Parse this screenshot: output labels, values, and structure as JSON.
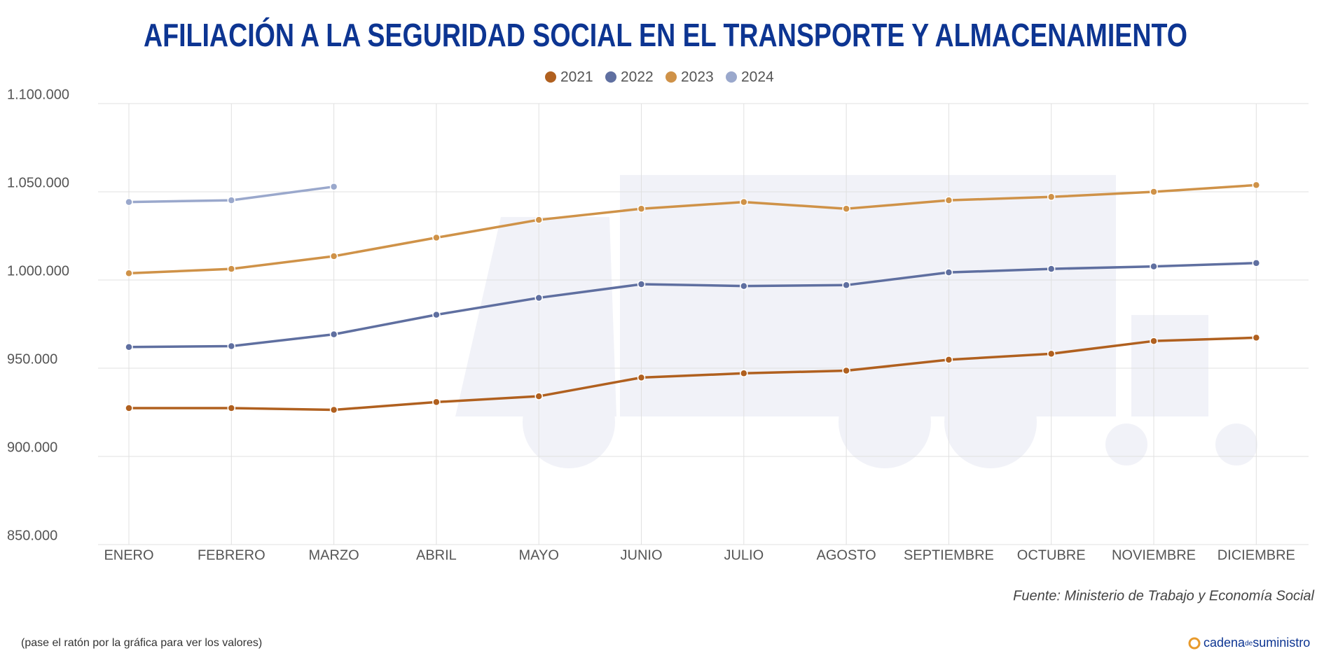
{
  "chart_data": {
    "type": "line",
    "title": "AFILIACIÓN A LA SEGURIDAD SOCIAL EN EL TRANSPORTE Y ALMACENAMIENTO",
    "categories": [
      "ENERO",
      "FEBRERO",
      "MARZO",
      "ABRIL",
      "MAYO",
      "JUNIO",
      "JULIO",
      "AGOSTO",
      "SEPTIEMBRE",
      "OCTUBRE",
      "NOVIEMBRE",
      "DICIEMBRE"
    ],
    "series": [
      {
        "name": "2021",
        "color": "#b0601f",
        "values": [
          927400,
          927400,
          926400,
          930800,
          934100,
          944700,
          947100,
          948600,
          954800,
          958200,
          965400,
          967300
        ]
      },
      {
        "name": "2022",
        "color": "#5f6fa0",
        "values": [
          962000,
          962500,
          969200,
          980300,
          989900,
          997600,
          996600,
          997100,
          1004300,
          1006300,
          1007700,
          1009600
        ]
      },
      {
        "name": "2023",
        "color": "#cf9248",
        "values": [
          1003800,
          1006300,
          1013500,
          1024000,
          1034100,
          1040400,
          1044200,
          1040400,
          1045200,
          1047100,
          1050000,
          1053800
        ]
      },
      {
        "name": "2024",
        "color": "#9aa8cc",
        "values": [
          1044200,
          1045200,
          1052900,
          null,
          null,
          null,
          null,
          null,
          null,
          null,
          null,
          null
        ]
      }
    ],
    "ylim": [
      850000,
      1100000
    ],
    "yticks": [
      {
        "value": 850000,
        "label": "850.000"
      },
      {
        "value": 900000,
        "label": "900.000"
      },
      {
        "value": 950000,
        "label": "950.000"
      },
      {
        "value": 1000000,
        "label": "1.000.000"
      },
      {
        "value": 1050000,
        "label": "1.050.000"
      },
      {
        "value": 1100000,
        "label": "1.100.000"
      }
    ],
    "grid": true,
    "legend": "top",
    "source": "Fuente: Ministerio de Trabajo y Economía Social",
    "note": "(pase el ratón por la gráfica para ver los valores)",
    "brand": [
      "cadena",
      "de",
      "suministro"
    ]
  }
}
